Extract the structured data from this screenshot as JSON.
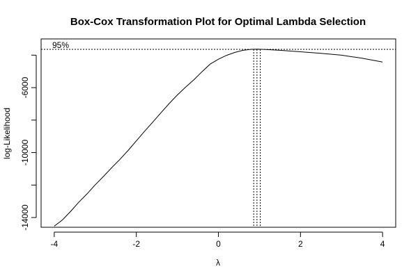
{
  "chart_data": {
    "type": "line",
    "title": "Box-Cox Transformation Plot for Optimal Lambda Selection",
    "xlabel": "λ",
    "ylabel": "log-Likelihood",
    "xlim": [
      -4.32,
      4.32
    ],
    "ylim": [
      -14600,
      -3000
    ],
    "x_ticks": [
      -4,
      -2,
      0,
      2,
      4
    ],
    "x_tick_labels": [
      "-4",
      "-2",
      "0",
      "2",
      "4"
    ],
    "y_ticks": [
      -14000,
      -12000,
      -10000,
      -8000,
      -6000,
      -4000
    ],
    "y_tick_labels": [
      "-14000",
      "",
      "-10000",
      "",
      "-6000",
      ""
    ],
    "series": [
      {
        "x": [
          -4,
          -3.8,
          -3.6,
          -3.4,
          -3.2,
          -3.0,
          -2.8,
          -2.6,
          -2.4,
          -2.2,
          -2.0,
          -1.8,
          -1.6,
          -1.4,
          -1.2,
          -1.0,
          -0.8,
          -0.6,
          -0.4,
          -0.2,
          0,
          0.2,
          0.4,
          0.6,
          0.8,
          0.95,
          1.2,
          1.5,
          2.0,
          2.5,
          3.0,
          3.5,
          4.0
        ],
        "y": [
          -14530,
          -14150,
          -13620,
          -13050,
          -12540,
          -11980,
          -11470,
          -10930,
          -10420,
          -9870,
          -9280,
          -8690,
          -8130,
          -7550,
          -6980,
          -6450,
          -5970,
          -5520,
          -5020,
          -4550,
          -4250,
          -4010,
          -3830,
          -3700,
          -3640,
          -3630,
          -3660,
          -3700,
          -3790,
          -3890,
          -4000,
          -4190,
          -4420
        ]
      }
    ],
    "ci_line": {
      "y": -3640,
      "label": "95%"
    },
    "ci_vlines": [
      0.86,
      0.94,
      1.02
    ],
    "grid": false
  }
}
